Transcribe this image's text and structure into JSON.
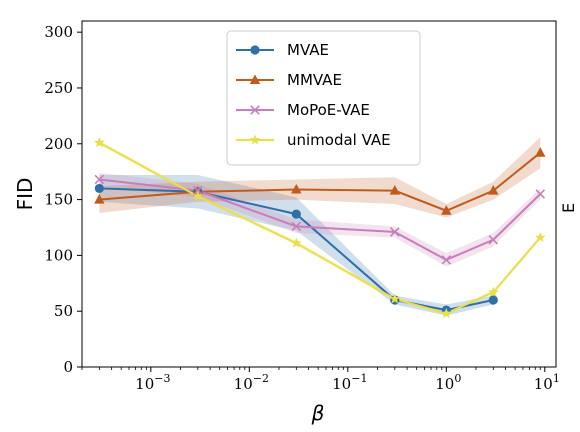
{
  "chart_data": {
    "type": "line",
    "xscale": "log",
    "xlabel": "β",
    "ylabel": "FID",
    "xlim": [
      0.0002,
      13
    ],
    "ylim": [
      0,
      310
    ],
    "x_ticks": [
      {
        "value": 0.001,
        "base": "10",
        "exp": "−3"
      },
      {
        "value": 0.01,
        "base": "10",
        "exp": "−2"
      },
      {
        "value": 0.1,
        "base": "10",
        "exp": "−1"
      },
      {
        "value": 1,
        "base": "10",
        "exp": "0"
      },
      {
        "value": 10,
        "base": "10",
        "exp": "1"
      }
    ],
    "y_ticks": [
      0,
      50,
      100,
      150,
      200,
      250,
      300
    ],
    "grid": false,
    "legend_position": "top-center",
    "series": [
      {
        "name": "MVAE",
        "color": "#2e6fa8",
        "marker": "circle",
        "x": [
          0.0003,
          0.003,
          0.03,
          0.3,
          1,
          3
        ],
        "y": [
          160,
          157,
          137,
          60,
          51,
          60
        ],
        "band": [
          [
            148,
            172
          ],
          [
            142,
            172
          ],
          [
            122,
            152
          ],
          [
            56,
            64
          ],
          [
            46,
            56
          ],
          [
            56,
            64
          ]
        ]
      },
      {
        "name": "MMVAE",
        "color": "#c05b1e",
        "marker": "triangle",
        "x": [
          0.0003,
          0.003,
          0.03,
          0.3,
          1,
          3,
          9
        ],
        "y": [
          150,
          157,
          159,
          158,
          140,
          158,
          192
        ],
        "band": [
          [
            138,
            162
          ],
          [
            148,
            166
          ],
          [
            150,
            168
          ],
          [
            146,
            170
          ],
          [
            134,
            146
          ],
          [
            150,
            166
          ],
          [
            178,
            206
          ]
        ]
      },
      {
        "name": "MoPoE-VAE",
        "color": "#c67fb8",
        "marker": "x",
        "x": [
          0.0003,
          0.003,
          0.03,
          0.3,
          1,
          3,
          9
        ],
        "y": [
          168,
          158,
          126,
          121,
          96,
          114,
          155
        ],
        "band": [
          [
            162,
            174
          ],
          [
            152,
            164
          ],
          [
            120,
            132
          ],
          [
            116,
            126
          ],
          [
            90,
            102
          ],
          [
            108,
            120
          ],
          [
            150,
            160
          ]
        ]
      },
      {
        "name": "unimodal VAE",
        "color": "#e8e04a",
        "marker": "star",
        "x": [
          0.0003,
          0.003,
          0.03,
          0.3,
          1,
          3,
          9
        ],
        "y": [
          201,
          153,
          111,
          61,
          48,
          67,
          116
        ],
        "band": [
          [
            199,
            203
          ],
          [
            151,
            155
          ],
          [
            109,
            113
          ],
          [
            59,
            63
          ],
          [
            46,
            50
          ],
          [
            65,
            69
          ],
          [
            114,
            118
          ]
        ]
      }
    ]
  },
  "edge_text": "Ε"
}
